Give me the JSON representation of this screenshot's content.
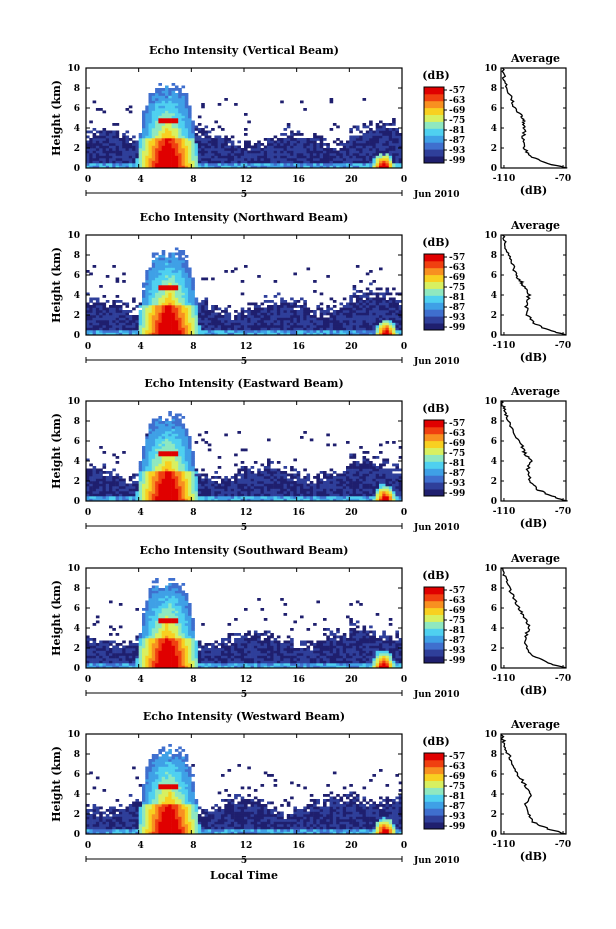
{
  "figure": {
    "xlabel": "Local Time",
    "colors": [
      "#1f1f6e",
      "#2f3f9a",
      "#3f6fce",
      "#3fa0e6",
      "#4fd0f0",
      "#8fe8c0",
      "#d8f060",
      "#f8d020",
      "#f89020",
      "#f04010",
      "#e00000"
    ]
  },
  "chart_data": [
    {
      "type": "heatmap",
      "title": "Echo Intensity (Vertical Beam)",
      "ylabel": "Height (km)",
      "xlim": [
        0,
        24
      ],
      "ylim": [
        0,
        10
      ],
      "xticks": [
        "0",
        "4",
        "8",
        "12",
        "16",
        "20",
        "0"
      ],
      "yticks": [
        "0",
        "2",
        "4",
        "6",
        "8",
        "10"
      ],
      "date_label": "5",
      "date_suffix": "Jun 2010",
      "colorbar": {
        "unit": "(dB)",
        "ticks": [
          "-57",
          "-63",
          "-69",
          "-75",
          "-81",
          "-87",
          "-93",
          "-99"
        ]
      },
      "average": {
        "title": "Average",
        "xlabel": "(dB)",
        "xticks": [
          "-110",
          "-70"
        ],
        "xlim": [
          -112,
          -68
        ],
        "ylim": [
          0,
          10
        ],
        "profile": [
          [
            -68,
            0
          ],
          [
            -82,
            0.5
          ],
          [
            -93,
            1.2
          ],
          [
            -96,
            2
          ],
          [
            -97,
            3
          ],
          [
            -96,
            4
          ],
          [
            -97,
            4.7
          ],
          [
            -98,
            5.2
          ],
          [
            -103,
            6
          ],
          [
            -105,
            7
          ],
          [
            -108,
            8
          ],
          [
            -110,
            9
          ],
          [
            -111,
            10
          ]
        ]
      },
      "storms": [
        [
          6.2,
          8.8
        ],
        [
          22.6,
          1.6
        ]
      ]
    },
    {
      "type": "heatmap",
      "title": "Echo Intensity (Northward Beam)",
      "ylabel": "Height (km)",
      "xlim": [
        0,
        24
      ],
      "ylim": [
        0,
        10
      ],
      "xticks": [
        "0",
        "4",
        "8",
        "12",
        "16",
        "20",
        "0"
      ],
      "yticks": [
        "0",
        "2",
        "4",
        "6",
        "8",
        "10"
      ],
      "date_label": "5",
      "date_suffix": "Jun 2010",
      "colorbar": {
        "unit": "(dB)",
        "ticks": [
          "-57",
          "-63",
          "-69",
          "-75",
          "-81",
          "-87",
          "-93",
          "-99"
        ]
      },
      "average": {
        "title": "Average",
        "xlabel": "(dB)",
        "xticks": [
          "-110",
          "-70"
        ],
        "xlim": [
          -112,
          -68
        ],
        "ylim": [
          0,
          10
        ],
        "profile": [
          [
            -68,
            0
          ],
          [
            -80,
            0.5
          ],
          [
            -90,
            1.2
          ],
          [
            -94,
            2
          ],
          [
            -95,
            3
          ],
          [
            -93,
            4
          ],
          [
            -96,
            4.7
          ],
          [
            -98,
            5.3
          ],
          [
            -102,
            6
          ],
          [
            -104,
            7
          ],
          [
            -107,
            8
          ],
          [
            -109,
            9
          ],
          [
            -111,
            10
          ]
        ]
      },
      "storms": [
        [
          6.3,
          9.0
        ],
        [
          22.8,
          1.6
        ]
      ]
    },
    {
      "type": "heatmap",
      "title": "Echo Intensity (Eastward Beam)",
      "ylabel": "Height (km)",
      "xlim": [
        0,
        24
      ],
      "ylim": [
        0,
        10
      ],
      "xticks": [
        "0",
        "4",
        "8",
        "12",
        "16",
        "20",
        "0"
      ],
      "yticks": [
        "0",
        "2",
        "4",
        "6",
        "8",
        "10"
      ],
      "date_label": "5",
      "date_suffix": "Jun 2010",
      "colorbar": {
        "unit": "(dB)",
        "ticks": [
          "-57",
          "-63",
          "-69",
          "-75",
          "-81",
          "-87",
          "-93",
          "-99"
        ]
      },
      "average": {
        "title": "Average",
        "xlabel": "(dB)",
        "xticks": [
          "-110",
          "-70"
        ],
        "xlim": [
          -112,
          -68
        ],
        "ylim": [
          0,
          10
        ],
        "profile": [
          [
            -68,
            0
          ],
          [
            -78,
            0.5
          ],
          [
            -88,
            1.2
          ],
          [
            -92,
            2
          ],
          [
            -94,
            3
          ],
          [
            -92,
            4
          ],
          [
            -96,
            4.8
          ],
          [
            -98,
            5.5
          ],
          [
            -102,
            6.5
          ],
          [
            -105,
            7.5
          ],
          [
            -108,
            8.5
          ],
          [
            -110,
            9.3
          ],
          [
            -112,
            10
          ]
        ]
      },
      "storms": [
        [
          6.2,
          9.2
        ],
        [
          22.7,
          1.7
        ]
      ]
    },
    {
      "type": "heatmap",
      "title": "Echo Intensity (Southward Beam)",
      "ylabel": "Height (km)",
      "xlim": [
        0,
        24
      ],
      "ylim": [
        0,
        10
      ],
      "xticks": [
        "0",
        "4",
        "8",
        "12",
        "16",
        "20",
        "0"
      ],
      "yticks": [
        "0",
        "2",
        "4",
        "6",
        "8",
        "10"
      ],
      "date_label": "5",
      "date_suffix": "Jun 2010",
      "colorbar": {
        "unit": "(dB)",
        "ticks": [
          "-57",
          "-63",
          "-69",
          "-75",
          "-81",
          "-87",
          "-93",
          "-99"
        ]
      },
      "average": {
        "title": "Average",
        "xlabel": "(dB)",
        "xticks": [
          "-110",
          "-70"
        ],
        "xlim": [
          -112,
          -68
        ],
        "ylim": [
          0,
          10
        ],
        "profile": [
          [
            -68,
            0
          ],
          [
            -80,
            0.5
          ],
          [
            -90,
            1.2
          ],
          [
            -95,
            2
          ],
          [
            -96,
            3
          ],
          [
            -93,
            4
          ],
          [
            -95,
            4.8
          ],
          [
            -98,
            5.6
          ],
          [
            -102,
            6.5
          ],
          [
            -105,
            7.5
          ],
          [
            -108,
            8.5
          ],
          [
            -110,
            9.3
          ],
          [
            -112,
            10
          ]
        ]
      },
      "storms": [
        [
          6.2,
          9.3
        ],
        [
          22.6,
          1.8
        ]
      ]
    },
    {
      "type": "heatmap",
      "title": "Echo Intensity (Westward Beam)",
      "ylabel": "Height (km)",
      "xlim": [
        0,
        24
      ],
      "ylim": [
        0,
        10
      ],
      "xticks": [
        "0",
        "4",
        "8",
        "12",
        "16",
        "20",
        "0"
      ],
      "yticks": [
        "0",
        "2",
        "4",
        "6",
        "8",
        "10"
      ],
      "date_label": "5",
      "date_suffix": "Jun 2010",
      "colorbar": {
        "unit": "(dB)",
        "ticks": [
          "-57",
          "-63",
          "-69",
          "-75",
          "-81",
          "-87",
          "-93",
          "-99"
        ]
      },
      "average": {
        "title": "Average",
        "xlabel": "(dB)",
        "xticks": [
          "-110",
          "-70"
        ],
        "xlim": [
          -112,
          -68
        ],
        "ylim": [
          0,
          10
        ],
        "profile": [
          [
            -68,
            0
          ],
          [
            -80,
            0.5
          ],
          [
            -90,
            1.2
          ],
          [
            -94,
            2
          ],
          [
            -95,
            3
          ],
          [
            -92,
            4
          ],
          [
            -95,
            4.7
          ],
          [
            -98,
            5.4
          ],
          [
            -102,
            6.3
          ],
          [
            -105,
            7.3
          ],
          [
            -108,
            8.3
          ],
          [
            -110,
            9.2
          ],
          [
            -112,
            10
          ]
        ]
      },
      "storms": [
        [
          6.3,
          9.0
        ],
        [
          22.7,
          1.7
        ]
      ]
    }
  ]
}
